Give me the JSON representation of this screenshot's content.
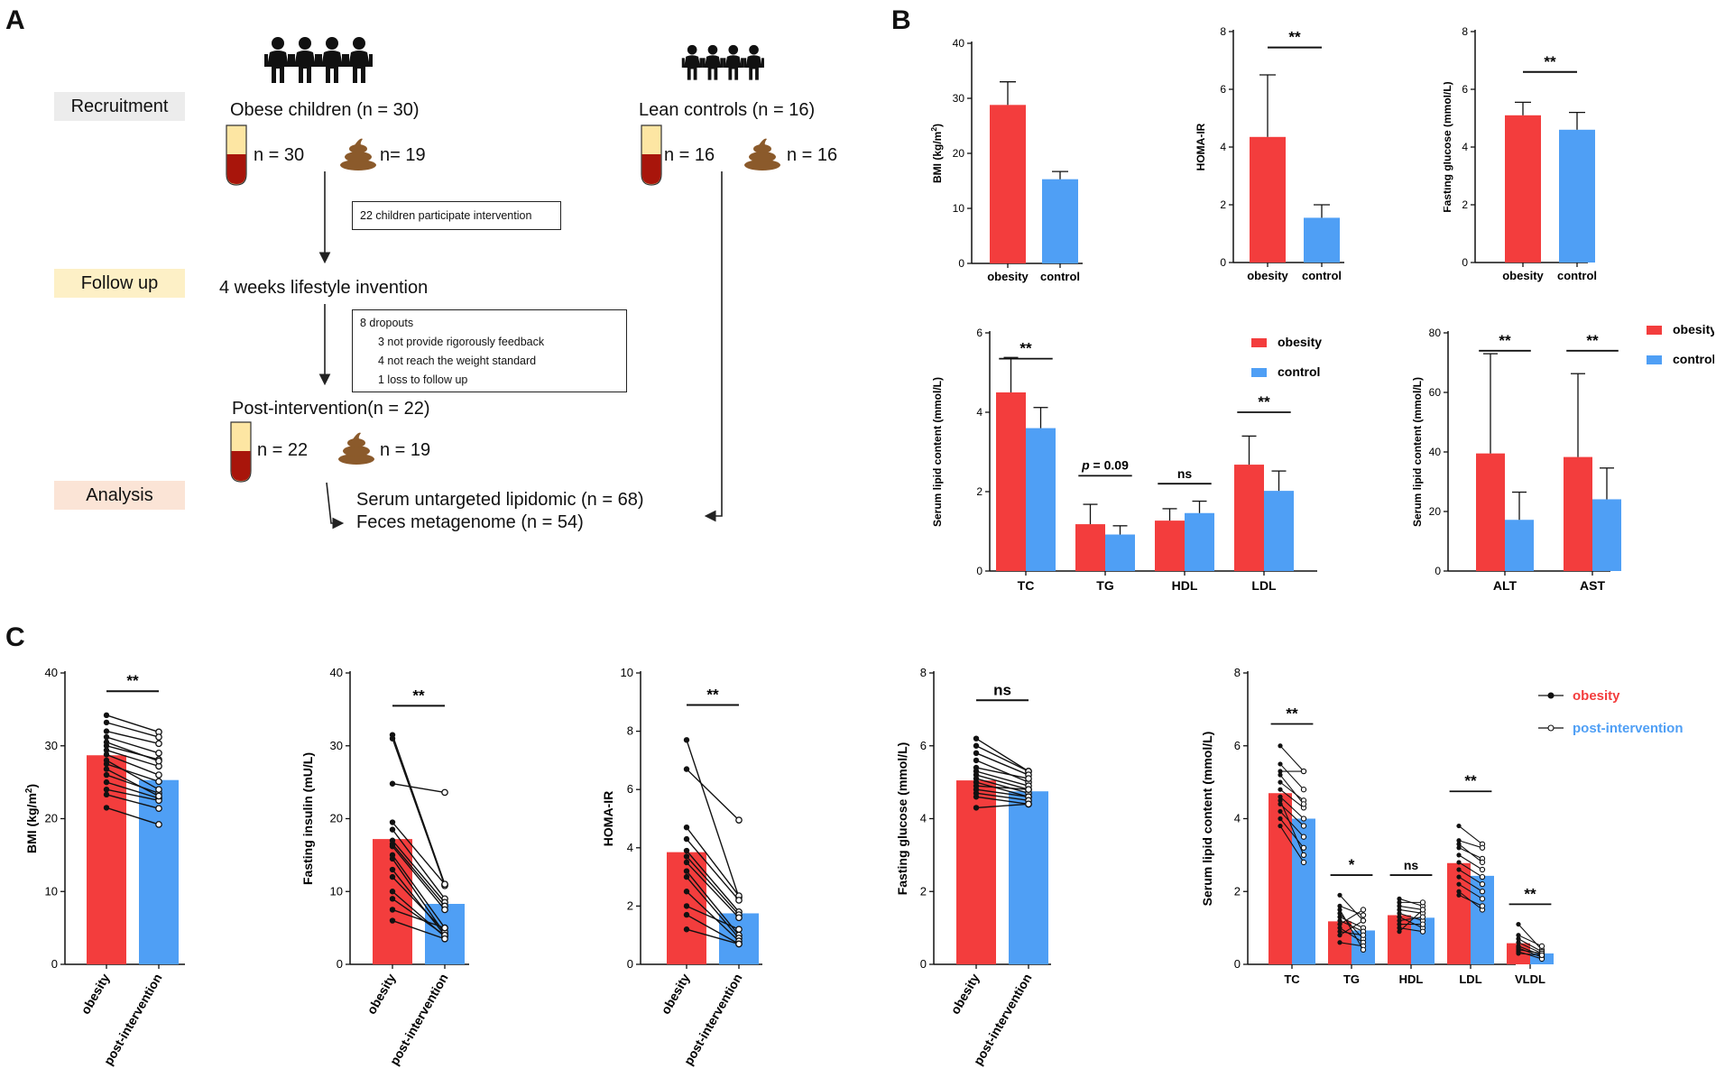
{
  "colors": {
    "obesity": "#f33d3d",
    "control": "#4f9ff5",
    "line": "#111111",
    "recruitment_bg": "#ececec",
    "followup_bg": "#fdf0c6",
    "analysis_bg": "#fbe4d6",
    "tube_cap": "#fde6a3",
    "tube_blood": "#a8150b",
    "stool": "#8b5a2b"
  },
  "panels": {
    "a": "A",
    "b": "B",
    "c": "C"
  },
  "flow": {
    "stages": {
      "recruitment": "Recruitment",
      "followup": "Follow up",
      "analysis": "Analysis"
    },
    "obese": "Obese children (n = 30)",
    "lean": "Lean controls (n = 16)",
    "obese_blood": "n = 30",
    "obese_feces": "n= 19",
    "lean_blood": "n = 16",
    "lean_feces": "n = 16",
    "participate": "22 children participate intervention",
    "lifestyle": "4 weeks lifestyle invention",
    "dropouts": [
      "8 dropouts",
      "3 not provide rigorously feedback",
      "4 not reach the weight standard",
      "1 loss to follow up"
    ],
    "post": "Post-intervention(n = 22)",
    "post_blood": "n = 22",
    "post_feces": "n = 19",
    "lipidomic": "Serum untargeted lipidomic (n = 68)",
    "metagenome": "Feces metagenome (n = 54)"
  },
  "chart_data": [
    {
      "id": "b-bmi",
      "type": "bar",
      "ylabel": "BMI (kg/m²)",
      "ylim": [
        0,
        40
      ],
      "yticks": [
        0,
        10,
        20,
        30,
        40
      ],
      "categories": [
        "obesity",
        "control"
      ],
      "values": [
        28.8,
        15.3
      ],
      "errors": [
        4.2,
        1.4
      ],
      "sig": ""
    },
    {
      "id": "b-homa",
      "type": "bar",
      "ylabel": "HOMA-IR",
      "ylim": [
        0,
        8
      ],
      "yticks": [
        0,
        2,
        4,
        6,
        8
      ],
      "categories": [
        "obesity",
        "control"
      ],
      "values": [
        4.35,
        1.55
      ],
      "errors": [
        2.15,
        0.45
      ],
      "sig": "**"
    },
    {
      "id": "b-glucose",
      "type": "bar",
      "ylabel": "Fasting glucose (mmol/L)",
      "ylim": [
        0,
        8
      ],
      "yticks": [
        0,
        2,
        4,
        6,
        8
      ],
      "categories": [
        "obesity",
        "control"
      ],
      "values": [
        5.1,
        4.6
      ],
      "errors": [
        0.45,
        0.6
      ],
      "sig": "**"
    },
    {
      "id": "b-lipid",
      "type": "bar",
      "ylabel": "Serum lipid content (mmol/L)",
      "ylim": [
        0,
        6
      ],
      "yticks": [
        0,
        2,
        4,
        6
      ],
      "categories": [
        "TC",
        "TG",
        "HDL",
        "LDL"
      ],
      "series": [
        {
          "name": "obesity",
          "values": [
            4.5,
            1.18,
            1.27,
            2.68
          ],
          "errors": [
            0.88,
            0.5,
            0.3,
            0.72
          ]
        },
        {
          "name": "control",
          "values": [
            3.6,
            0.92,
            1.46,
            2.02
          ],
          "errors": [
            0.52,
            0.22,
            0.3,
            0.5
          ]
        }
      ],
      "sig": [
        "**",
        "p = 0.09",
        "ns",
        "**"
      ]
    },
    {
      "id": "b-liver",
      "type": "bar",
      "ylabel": "Serum lipid content (mmol/L)",
      "ylim": [
        0,
        80
      ],
      "yticks": [
        0,
        20,
        40,
        60,
        80
      ],
      "categories": [
        "ALT",
        "AST"
      ],
      "series": [
        {
          "name": "obesity",
          "values": [
            39.5,
            38.3
          ],
          "errors": [
            33.5,
            28
          ]
        },
        {
          "name": "control",
          "values": [
            17.2,
            24.1
          ],
          "errors": [
            9.3,
            10.5
          ]
        }
      ],
      "sig": [
        "**",
        "**"
      ]
    },
    {
      "id": "c-bmi",
      "type": "bar",
      "ylabel": "BMI (kg/m²)",
      "ylim": [
        0,
        40
      ],
      "yticks": [
        0,
        10,
        20,
        30,
        40
      ],
      "categories": [
        "obesity",
        "post-intervention"
      ],
      "values": [
        28.7,
        25.3
      ],
      "sig": "**",
      "paired": [
        [
          34.2,
          31.9
        ],
        [
          33.2,
          31.2
        ],
        [
          32.0,
          30.3
        ],
        [
          31.2,
          29.0
        ],
        [
          30.0,
          28.1
        ],
        [
          29.4,
          27.2
        ],
        [
          28.8,
          26.0
        ],
        [
          27.5,
          25.1
        ],
        [
          26.0,
          23.5
        ],
        [
          25.0,
          22.8
        ],
        [
          24.0,
          22.5
        ],
        [
          23.3,
          21.4
        ],
        [
          21.5,
          19.2
        ],
        [
          30.5,
          27.9
        ],
        [
          28.0,
          24.0
        ],
        [
          26.8,
          23.1
        ]
      ]
    },
    {
      "id": "c-insulin",
      "type": "bar",
      "ylabel": "Fasting insulin (mU/L)",
      "ylim": [
        0,
        40
      ],
      "yticks": [
        0,
        10,
        20,
        30,
        40
      ],
      "categories": [
        "obesity",
        "post-intervention"
      ],
      "values": [
        17.2,
        8.3
      ],
      "sig": "**",
      "paired": [
        [
          31.5,
          11.0
        ],
        [
          31.0,
          10.8
        ],
        [
          24.8,
          23.6
        ],
        [
          19.5,
          11.0
        ],
        [
          18.5,
          9.0
        ],
        [
          17.0,
          8.5
        ],
        [
          16.5,
          8.0
        ],
        [
          16.2,
          7.5
        ],
        [
          15.0,
          5.0
        ],
        [
          14.5,
          4.2
        ],
        [
          13.0,
          4.0
        ],
        [
          12.0,
          4.5
        ],
        [
          10.0,
          3.8
        ],
        [
          9.0,
          4.0
        ],
        [
          7.5,
          5.0
        ],
        [
          6.0,
          3.5
        ]
      ]
    },
    {
      "id": "c-homa",
      "type": "bar",
      "ylabel": "HOMA-IR",
      "ylim": [
        0,
        10
      ],
      "yticks": [
        0,
        2,
        4,
        6,
        8,
        10
      ],
      "categories": [
        "obesity",
        "post-intervention"
      ],
      "values": [
        3.85,
        1.75
      ],
      "sig": "**",
      "paired": [
        [
          7.7,
          2.3
        ],
        [
          6.7,
          4.95
        ],
        [
          4.7,
          2.35
        ],
        [
          4.3,
          2.2
        ],
        [
          3.9,
          1.8
        ],
        [
          3.7,
          1.7
        ],
        [
          3.5,
          1.6
        ],
        [
          3.2,
          1.0
        ],
        [
          3.0,
          0.9
        ],
        [
          2.5,
          0.8
        ],
        [
          2.0,
          1.2
        ],
        [
          1.7,
          0.7
        ],
        [
          1.2,
          0.7
        ]
      ]
    },
    {
      "id": "c-glucose",
      "type": "bar",
      "ylabel": "Fasting glucose (mmol/L)",
      "ylim": [
        0,
        8
      ],
      "yticks": [
        0,
        2,
        4,
        6,
        8
      ],
      "categories": [
        "obesity",
        "post-intervention"
      ],
      "values": [
        5.05,
        4.75
      ],
      "sig": "ns",
      "paired": [
        [
          6.2,
          5.3
        ],
        [
          6.0,
          5.3
        ],
        [
          5.8,
          5.2
        ],
        [
          5.6,
          5.0
        ],
        [
          5.4,
          5.1
        ],
        [
          5.3,
          4.9
        ],
        [
          5.2,
          4.8
        ],
        [
          5.1,
          4.7
        ],
        [
          5.0,
          4.6
        ],
        [
          4.9,
          4.8
        ],
        [
          4.8,
          4.6
        ],
        [
          4.7,
          4.5
        ],
        [
          4.6,
          4.4
        ],
        [
          4.3,
          4.4
        ]
      ]
    },
    {
      "id": "c-lipid",
      "type": "bar",
      "ylabel": "Serum lipid content (mmol/L)",
      "ylim": [
        0,
        8
      ],
      "yticks": [
        0,
        2,
        4,
        6,
        8
      ],
      "categories": [
        "TC",
        "TG",
        "HDL",
        "LDL",
        "VLDL"
      ],
      "series": [
        {
          "name": "obesity",
          "values": [
            4.7,
            1.18,
            1.35,
            2.78,
            0.58
          ]
        },
        {
          "name": "post-intervention",
          "values": [
            4.0,
            0.93,
            1.28,
            2.43,
            0.3
          ]
        }
      ],
      "sig": [
        "**",
        "*",
        "ns",
        "**",
        "**"
      ],
      "paired": [
        [
          [
            6.0,
            5.3
          ],
          [
            5.5,
            4.8
          ],
          [
            5.3,
            5.3
          ],
          [
            5.0,
            4.5
          ],
          [
            4.8,
            4.3
          ],
          [
            4.6,
            4.0
          ],
          [
            4.4,
            3.8
          ],
          [
            4.2,
            3.5
          ],
          [
            4.0,
            3.2
          ],
          [
            3.8,
            2.8
          ],
          [
            4.5,
            3.0
          ],
          [
            5.2,
            4.4
          ]
        ],
        [
          [
            1.9,
            1.2
          ],
          [
            1.6,
            1.35
          ],
          [
            1.4,
            0.7
          ],
          [
            1.3,
            1.0
          ],
          [
            1.2,
            0.9
          ],
          [
            1.1,
            1.5
          ],
          [
            1.0,
            0.6
          ],
          [
            0.9,
            0.8
          ],
          [
            0.8,
            1.2
          ],
          [
            0.6,
            0.5
          ],
          [
            1.5,
            0.4
          ]
        ],
        [
          [
            1.8,
            1.6
          ],
          [
            1.7,
            1.7
          ],
          [
            1.6,
            1.5
          ],
          [
            1.5,
            1.4
          ],
          [
            1.4,
            1.2
          ],
          [
            1.3,
            1.0
          ],
          [
            1.2,
            1.3
          ],
          [
            1.1,
            1.1
          ],
          [
            1.0,
            0.9
          ],
          [
            0.9,
            1.5
          ]
        ],
        [
          [
            3.8,
            3.3
          ],
          [
            3.4,
            3.2
          ],
          [
            3.2,
            2.9
          ],
          [
            3.0,
            2.6
          ],
          [
            2.8,
            2.4
          ],
          [
            2.6,
            2.2
          ],
          [
            2.4,
            2.0
          ],
          [
            2.2,
            1.8
          ],
          [
            2.0,
            1.5
          ],
          [
            1.9,
            1.6
          ],
          [
            3.3,
            2.8
          ]
        ],
        [
          [
            1.1,
            0.4
          ],
          [
            0.8,
            0.5
          ],
          [
            0.7,
            0.35
          ],
          [
            0.6,
            0.3
          ],
          [
            0.5,
            0.25
          ],
          [
            0.45,
            0.2
          ],
          [
            0.4,
            0.3
          ],
          [
            0.35,
            0.15
          ],
          [
            0.3,
            0.25
          ]
        ]
      ]
    }
  ],
  "legends": {
    "obesity": "obesity",
    "control": "control",
    "post": "post-intervention"
  }
}
